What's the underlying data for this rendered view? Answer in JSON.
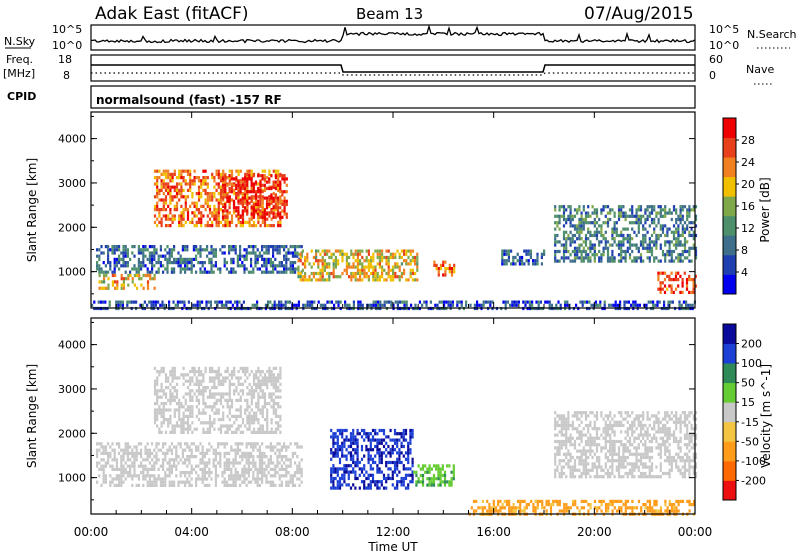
{
  "header": {
    "station": "Adak East (fitACF)",
    "beam": "Beam 13",
    "date": "07/Aug/2015"
  },
  "strip_labels": {
    "nsky": "N.Sky",
    "nsky_ticks": [
      "10^5",
      "10^0"
    ],
    "nsearch": "N.Search",
    "nsearch_ticks": [
      "10^5",
      "10^0"
    ],
    "freq": "Freq.",
    "freq_unit": "[MHz]",
    "freq_ticks": [
      "18",
      "8"
    ],
    "nave": "Nave",
    "nave_ticks": [
      "60",
      "0"
    ],
    "cpid": "CPID",
    "cpid_text": "normalsound (fast) -157 RF"
  },
  "xaxis": {
    "label": "Time UT",
    "ticks": [
      "00:00",
      "04:00",
      "08:00",
      "12:00",
      "16:00",
      "20:00",
      "00:00"
    ]
  },
  "colors": {
    "power": [
      "#0000ee",
      "#1f3fb0",
      "#3d6f8a",
      "#4d8f6a",
      "#7fa84a",
      "#f0c000",
      "#f08020",
      "#e8401a",
      "#ee0000"
    ],
    "velocity": [
      "#ee1010",
      "#ff6a00",
      "#ff9c1a",
      "#f4c542",
      "#c8c8c8",
      "#66cc33",
      "#2e8b57",
      "#1c3fd6",
      "#0a0a9a"
    ]
  },
  "chart_data": [
    {
      "type": "heatmap",
      "name": "power",
      "title": "",
      "xlabel": "Time UT",
      "ylabel": "Slant Range [km]",
      "xlim": [
        0,
        24
      ],
      "ylim": [
        180,
        4600
      ],
      "yticks": [
        "1000",
        "2000",
        "3000",
        "4000"
      ],
      "colorbar": {
        "label": "Power [dB]",
        "range": [
          0,
          32
        ],
        "ticks": [
          "4",
          "8",
          "12",
          "16",
          "20",
          "24",
          "28"
        ]
      },
      "regions": [
        {
          "t": [
            0.2,
            8.4
          ],
          "r": [
            1000,
            1600
          ],
          "v": 8
        },
        {
          "t": [
            0.3,
            2.5
          ],
          "r": [
            600,
            950
          ],
          "v": 20
        },
        {
          "t": [
            2.5,
            7.5
          ],
          "r": [
            2050,
            3300
          ],
          "v": 24
        },
        {
          "t": [
            5.2,
            7.8
          ],
          "r": [
            2200,
            3200
          ],
          "v": 29
        },
        {
          "t": [
            8.2,
            13.0
          ],
          "r": [
            850,
            1500
          ],
          "v": 20
        },
        {
          "t": [
            13.6,
            14.4
          ],
          "r": [
            950,
            1250
          ],
          "v": 24
        },
        {
          "t": [
            16.3,
            18.0
          ],
          "r": [
            1150,
            1500
          ],
          "v": 8
        },
        {
          "t": [
            18.4,
            24.0
          ],
          "r": [
            1250,
            2500
          ],
          "v": 10
        },
        {
          "t": [
            22.5,
            24.0
          ],
          "r": [
            550,
            1000
          ],
          "v": 27
        },
        {
          "t": [
            0.0,
            24.0
          ],
          "r": [
            180,
            350
          ],
          "v": 6
        }
      ]
    },
    {
      "type": "heatmap",
      "name": "velocity",
      "title": "",
      "xlabel": "Time UT",
      "ylabel": "Slant Range [km]",
      "xlim": [
        0,
        24
      ],
      "ylim": [
        180,
        4600
      ],
      "yticks": [
        "1000",
        "2000",
        "3000",
        "4000"
      ],
      "colorbar": {
        "label": "Velocity [m s^-1]",
        "ticks": [
          "200",
          "100",
          "50",
          "15",
          "-15",
          "-50",
          "-100",
          "-200"
        ]
      },
      "regions": [
        {
          "t": [
            0.2,
            8.4
          ],
          "r": [
            800,
            1800
          ],
          "v": 0
        },
        {
          "t": [
            2.5,
            7.5
          ],
          "r": [
            2050,
            3500
          ],
          "v": 0
        },
        {
          "t": [
            9.5,
            12.8
          ],
          "r": [
            800,
            2100
          ],
          "v": 180
        },
        {
          "t": [
            12.8,
            14.4
          ],
          "r": [
            850,
            1300
          ],
          "v": 40
        },
        {
          "t": [
            15.0,
            24.0
          ],
          "r": [
            180,
            500
          ],
          "v": -70
        },
        {
          "t": [
            18.4,
            24.0
          ],
          "r": [
            1000,
            2500
          ],
          "v": 0
        }
      ]
    }
  ]
}
